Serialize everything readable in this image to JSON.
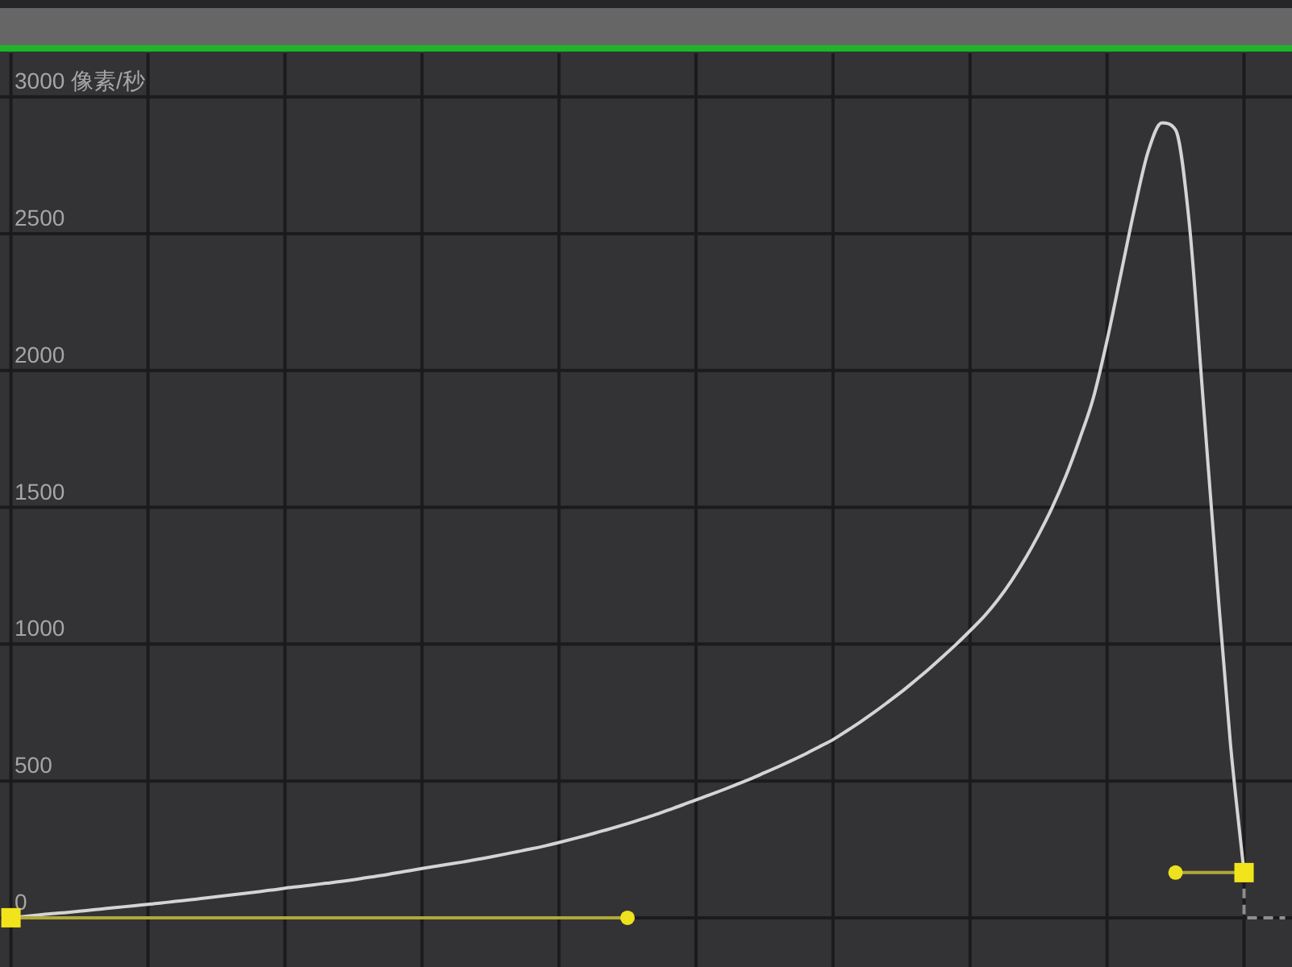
{
  "chart_data": {
    "type": "line",
    "categories": [
      null,
      null,
      null,
      null,
      null,
      null,
      null,
      null,
      null,
      null,
      null,
      null,
      null,
      null,
      null,
      null,
      null,
      null,
      null,
      null,
      null,
      null,
      null,
      null,
      null,
      null,
      null,
      null,
      null,
      null,
      null,
      null,
      null,
      null,
      null,
      null,
      null,
      null,
      null,
      null,
      null,
      null,
      null,
      null,
      null,
      null,
      null,
      null,
      null,
      null,
      null,
      null,
      null,
      null,
      null,
      null,
      null,
      null,
      null,
      null,
      null,
      null,
      null,
      null,
      null,
      null,
      null,
      null,
      null,
      null,
      null,
      null,
      null,
      null,
      null,
      null,
      null,
      null,
      null,
      null,
      null,
      null,
      null,
      null,
      null,
      null,
      null,
      null,
      null,
      null,
      null,
      null,
      null,
      null
    ],
    "ylim": [
      -180,
      3160
    ],
    "yticks": [
      {
        "value": 3000,
        "label": "3000 像素/秒"
      },
      2500,
      2000,
      1500,
      1000,
      500,
      0
    ],
    "grid": true,
    "series": [
      {
        "color": "#d4d4d4",
        "marker": "none",
        "line_style": "solid",
        "values": [
          0,
          5,
          10,
          15,
          19,
          24,
          29,
          34,
          39,
          44,
          49,
          54,
          60,
          65,
          71,
          77,
          83,
          89,
          95,
          101,
          108,
          114,
          120,
          126,
          132,
          139,
          147,
          154,
          163,
          171,
          180,
          188,
          196,
          204,
          213,
          222,
          232,
          242,
          252,
          263,
          275,
          288,
          301,
          315,
          329,
          344,
          360,
          376,
          394,
          412,
          431,
          449,
          468,
          488,
          508,
          530,
          552,
          575,
          599,
          625,
          651,
          683,
          716,
          751,
          788,
          826,
          867,
          909,
          954,
          1000,
          1049,
          1100,
          1160,
          1230,
          1310,
          1400,
          1500,
          1615,
          1750,
          1900,
          2110,
          2350,
          2590,
          2800,
          2905,
          2880,
          2540,
          1900,
          1250,
          640,
          165,
          null,
          null,
          null
        ]
      },
      {
        "type": "step",
        "color": "#8e8e8e",
        "marker": "none",
        "line_style": "dashed",
        "values": [
          null,
          null,
          null,
          null,
          null,
          null,
          null,
          null,
          null,
          null,
          null,
          null,
          null,
          null,
          null,
          null,
          null,
          null,
          null,
          null,
          null,
          null,
          null,
          null,
          null,
          null,
          null,
          null,
          null,
          null,
          null,
          null,
          null,
          null,
          null,
          null,
          null,
          null,
          null,
          null,
          null,
          null,
          null,
          null,
          null,
          null,
          null,
          null,
          null,
          null,
          null,
          null,
          null,
          null,
          null,
          null,
          null,
          null,
          null,
          null,
          null,
          null,
          null,
          null,
          null,
          null,
          null,
          null,
          null,
          null,
          null,
          null,
          null,
          null,
          null,
          null,
          null,
          null,
          null,
          null,
          null,
          null,
          null,
          null,
          null,
          null,
          null,
          null,
          null,
          null,
          165,
          0,
          0,
          0
        ]
      },
      {
        "color": "#b0a838",
        "marker": "none",
        "line_style": "solid",
        "values": [
          0,
          0,
          0,
          0,
          0,
          0,
          0,
          0,
          0,
          0,
          0,
          0,
          0,
          0,
          0,
          0,
          0,
          0,
          0,
          0,
          0,
          0,
          0,
          0,
          0,
          0,
          0,
          0,
          0,
          0,
          0,
          0,
          0,
          0,
          0,
          0,
          0,
          0,
          0,
          0,
          0,
          0,
          0,
          0,
          0,
          0,
          null,
          null,
          null,
          null,
          null,
          null,
          null,
          null,
          null,
          null,
          null,
          null,
          null,
          null,
          null,
          null,
          null,
          null,
          null,
          null,
          null,
          null,
          null,
          null,
          null,
          null,
          null,
          null,
          null,
          null,
          null,
          null,
          null,
          null,
          null,
          null,
          null,
          null,
          null,
          165,
          165,
          165,
          165,
          165,
          165,
          null,
          null,
          null
        ]
      },
      {
        "type": "scatter",
        "color": "#eee21e",
        "marker": "circle",
        "values": [
          null,
          null,
          null,
          null,
          null,
          null,
          null,
          null,
          null,
          null,
          null,
          null,
          null,
          null,
          null,
          null,
          null,
          null,
          null,
          null,
          null,
          null,
          null,
          null,
          null,
          null,
          null,
          null,
          null,
          null,
          null,
          null,
          null,
          null,
          null,
          null,
          null,
          null,
          null,
          null,
          null,
          null,
          null,
          null,
          null,
          0,
          null,
          null,
          null,
          null,
          null,
          null,
          null,
          null,
          null,
          null,
          null,
          null,
          null,
          null,
          null,
          null,
          null,
          null,
          null,
          null,
          null,
          null,
          null,
          null,
          null,
          null,
          null,
          null,
          null,
          null,
          null,
          null,
          null,
          null,
          null,
          null,
          null,
          null,
          null,
          165,
          null,
          null,
          null,
          null,
          null,
          null,
          null,
          null
        ]
      },
      {
        "type": "scatter",
        "color": "#f2e41a",
        "marker": "square",
        "values": [
          0,
          null,
          null,
          null,
          null,
          null,
          null,
          null,
          null,
          null,
          null,
          null,
          null,
          null,
          null,
          null,
          null,
          null,
          null,
          null,
          null,
          null,
          null,
          null,
          null,
          null,
          null,
          null,
          null,
          null,
          null,
          null,
          null,
          null,
          null,
          null,
          null,
          null,
          null,
          null,
          null,
          null,
          null,
          null,
          null,
          null,
          null,
          null,
          null,
          null,
          null,
          null,
          null,
          null,
          null,
          null,
          null,
          null,
          null,
          null,
          null,
          null,
          null,
          null,
          null,
          null,
          null,
          null,
          null,
          null,
          null,
          null,
          null,
          null,
          null,
          null,
          null,
          null,
          null,
          null,
          null,
          null,
          null,
          null,
          null,
          null,
          null,
          null,
          null,
          null,
          165,
          null,
          null,
          null
        ]
      }
    ]
  }
}
